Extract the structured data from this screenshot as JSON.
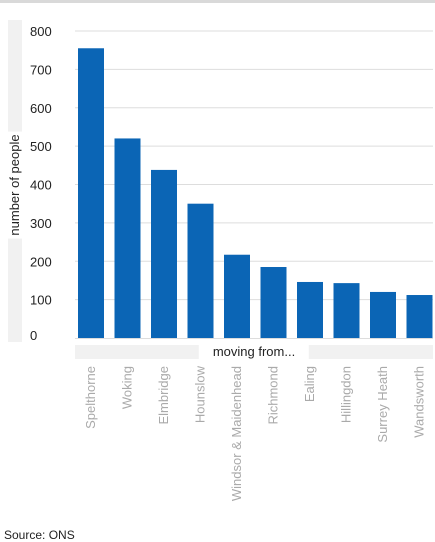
{
  "chart_data": {
    "type": "bar",
    "categories": [
      "Spelthorne",
      "Woking",
      "Elmbridge",
      "Hounslow",
      "Windsor & Maidenhead",
      "Richmond",
      "Ealing",
      "Hillingdon",
      "Surrey Heath",
      "Wandsworth"
    ],
    "values": [
      755,
      520,
      438,
      350,
      217,
      185,
      146,
      143,
      120,
      112
    ],
    "title": "",
    "xlabel": "moving from...",
    "ylabel": "number of people",
    "ylim": [
      0,
      800
    ],
    "yticks": [
      "0",
      "100",
      "200",
      "300",
      "400",
      "500",
      "600",
      "700",
      "800"
    ],
    "grid": true,
    "bar_color": "#0b65b5",
    "tick_label_color": "#aaaaaa"
  },
  "source": {
    "label": "Source:",
    "name": "ONS"
  }
}
